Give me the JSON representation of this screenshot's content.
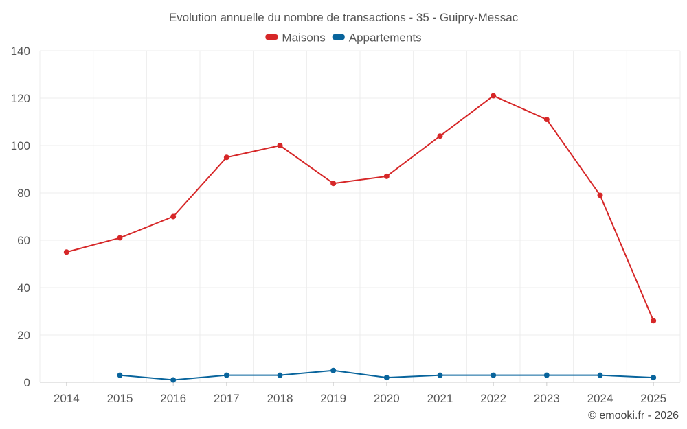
{
  "chart_data": {
    "type": "line",
    "title": "Evolution annuelle du nombre de transactions - 35 - Guipry-Messac",
    "categories": [
      "2014",
      "2015",
      "2016",
      "2017",
      "2018",
      "2019",
      "2020",
      "2021",
      "2022",
      "2023",
      "2024",
      "2025"
    ],
    "series": [
      {
        "name": "Maisons",
        "color": "#d62728",
        "values": [
          55,
          61,
          70,
          95,
          100,
          84,
          87,
          104,
          121,
          111,
          79,
          26
        ]
      },
      {
        "name": "Appartements",
        "color": "#08649c",
        "values": [
          null,
          3,
          1,
          3,
          3,
          5,
          2,
          3,
          3,
          3,
          3,
          2
        ]
      }
    ],
    "ylim": [
      0,
      140
    ],
    "yticks": [
      0,
      20,
      40,
      60,
      80,
      100,
      120,
      140
    ],
    "grid": true,
    "legend": "top-center",
    "xlabel": "",
    "ylabel": ""
  },
  "credit": "© emooki.fr - 2026"
}
